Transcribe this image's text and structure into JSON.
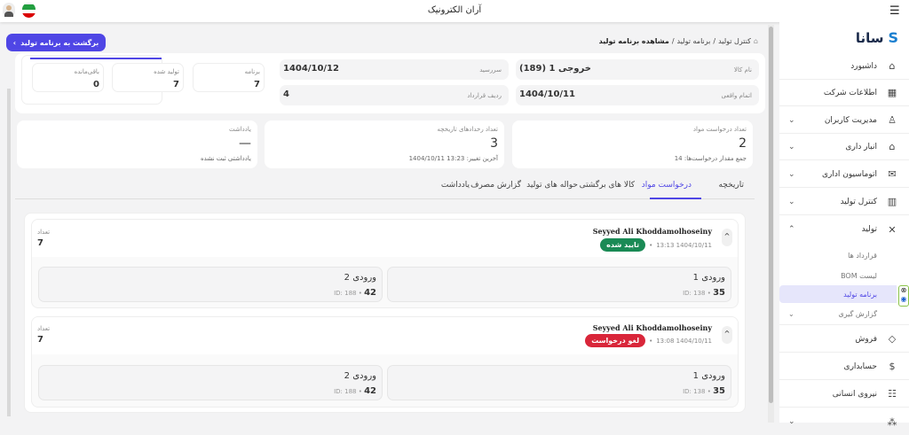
{
  "topbar": {
    "title": "آران الکترونیک",
    "menu_icon": "hamburger-icon",
    "flag_icon": "iran-flag-icon",
    "avatar_icon": "user-avatar-icon"
  },
  "header": {
    "back_button": "برگشت به برنامه تولید",
    "breadcrumb": [
      "کنترل تولید",
      "برنامه تولید",
      "مشاهده برنامه تولید"
    ],
    "separator": "/"
  },
  "summary": {
    "stats": [
      {
        "label": "برنامه",
        "value": "7"
      },
      {
        "label": "تولید شده",
        "value": "7"
      },
      {
        "label": "باقی‌مانده",
        "value": "0"
      }
    ],
    "fields": [
      {
        "label": "نام کالا",
        "value": "خروجی 1 (189)"
      },
      {
        "label": "سررسید",
        "value": "1404/10/12"
      },
      {
        "label": "اتمام واقعی",
        "value": "1404/10/11"
      },
      {
        "label": "ردیف قرارداد",
        "value": "4"
      }
    ]
  },
  "metrics": [
    {
      "label": "تعداد درخواست مواد",
      "value": "2",
      "note": "جمع مقدار درخواست‌ها: 14"
    },
    {
      "label": "تعداد رخدادهای تاریخچه",
      "value": "3",
      "note": "آخرین تغییر: 13:23 1404/10/11"
    },
    {
      "label": "یادداشت",
      "value": "—",
      "note": "یادداشتی ثبت نشده"
    }
  ],
  "tabs": [
    "تاریخچه",
    "درخواست مواد",
    "کالا های برگشتی",
    "حواله های تولید",
    "گزارش مصرف",
    "یادداشت"
  ],
  "active_tab": "درخواست مواد",
  "requests": [
    {
      "user": "Seyyed Ali Khoddamolhoseiny",
      "date": "1404/10/11 13:13",
      "status": "تایید شده",
      "status_color": "#1a8a55",
      "qty_label": "تعداد",
      "qty": "7",
      "items": [
        {
          "name": "ورودی 1",
          "qty": "35",
          "id": "ID: 138"
        },
        {
          "name": "ورودی 2",
          "qty": "42",
          "id": "ID: 188"
        }
      ]
    },
    {
      "user": "Seyyed Ali Khoddamolhoseiny",
      "date": "1404/10/11 13:08",
      "status": "لغو درخواست",
      "status_color": "#d9263a",
      "qty_label": "تعداد",
      "qty": "7",
      "items": [
        {
          "name": "ورودی 1",
          "qty": "35",
          "id": "ID: 138"
        },
        {
          "name": "ورودی 2",
          "qty": "42",
          "id": "ID: 188"
        }
      ]
    }
  ],
  "sidebar": {
    "brand": "سانا",
    "items": [
      {
        "label": "داشبورد",
        "icon": "home-icon"
      },
      {
        "label": "اطلاعات شرکت",
        "icon": "building-icon"
      },
      {
        "label": "مدیریت کاربران",
        "icon": "user-icon"
      },
      {
        "label": "انبار داری",
        "icon": "warehouse-icon"
      },
      {
        "label": "اتوماسیون اداری",
        "icon": "mail-icon"
      },
      {
        "label": "کنترل تولید",
        "icon": "factory-icon"
      },
      {
        "label": "تولید",
        "icon": "tools-icon"
      }
    ],
    "sub_items": [
      "قرارداد ها",
      "لیست BOM",
      "برنامه تولید",
      "گزارش گیری"
    ],
    "items2": [
      {
        "label": "فروش",
        "icon": "tag-icon"
      },
      {
        "label": "حسابداری",
        "icon": "dollar-icon"
      },
      {
        "label": "نیروی انسانی",
        "icon": "people-icon"
      }
    ]
  },
  "colors": {
    "accent": "#4f46e5",
    "active_bg": "#e6e6fb",
    "approved": "#1a8a55",
    "cancelled": "#d9263a"
  }
}
